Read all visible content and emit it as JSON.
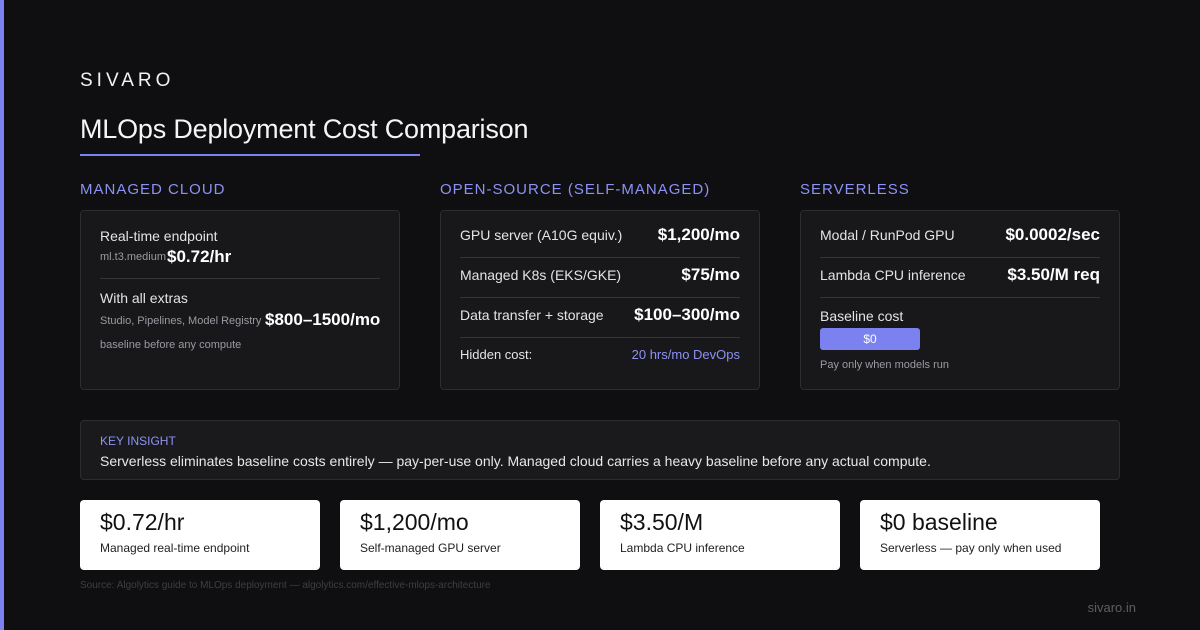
{
  "brand": "SIVARO",
  "title": "MLOps Deployment Cost Comparison",
  "columns": {
    "managed": {
      "heading": "MANAGED CLOUD",
      "realtime_label": "Real-time endpoint",
      "realtime_sub": "ml.t3.medium",
      "realtime_value": "$0.72/hr",
      "extras_label": "With all extras",
      "extras_sub": "Studio, Pipelines, Model Registry",
      "extras_value": "$800–1500/mo",
      "extras_note": "baseline before any compute"
    },
    "opensource": {
      "heading": "OPEN-SOURCE (SELF-MANAGED)",
      "rows": [
        {
          "label": "GPU server (A10G equiv.)",
          "value": "$1,200/mo"
        },
        {
          "label": "Managed K8s (EKS/GKE)",
          "value": "$75/mo"
        },
        {
          "label": "Data transfer + storage",
          "value": "$100–300/mo"
        }
      ],
      "hidden_label": "Hidden cost:",
      "hidden_value": "20 hrs/mo DevOps"
    },
    "serverless": {
      "heading": "SERVERLESS",
      "rows": [
        {
          "label": "Modal / RunPod GPU",
          "value": "$0.0002/sec"
        },
        {
          "label": "Lambda CPU inference",
          "value": "$3.50/M req"
        }
      ],
      "baseline_label": "Baseline cost",
      "baseline_value": "$0",
      "baseline_note": "Pay only when models run"
    }
  },
  "insight": {
    "label": "KEY INSIGHT",
    "text": "Serverless eliminates baseline costs entirely — pay-per-use only. Managed cloud carries a heavy baseline before any actual compute."
  },
  "stats": [
    {
      "value": "$0.72/hr",
      "label": "Managed real-time endpoint"
    },
    {
      "value": "$1,200/mo",
      "label": "Self-managed GPU server"
    },
    {
      "value": "$3.50/M",
      "label": "Lambda CPU inference"
    },
    {
      "value": "$0 baseline",
      "label": "Serverless — pay only when used"
    }
  ],
  "source": "Source: Algolytics guide to MLOps deployment — algolytics.com/effective-mlops-architecture",
  "footer_url": "sivaro.in",
  "colors": {
    "accent": "#7b82f0",
    "background": "#0f0f11",
    "card": "#18181b"
  }
}
